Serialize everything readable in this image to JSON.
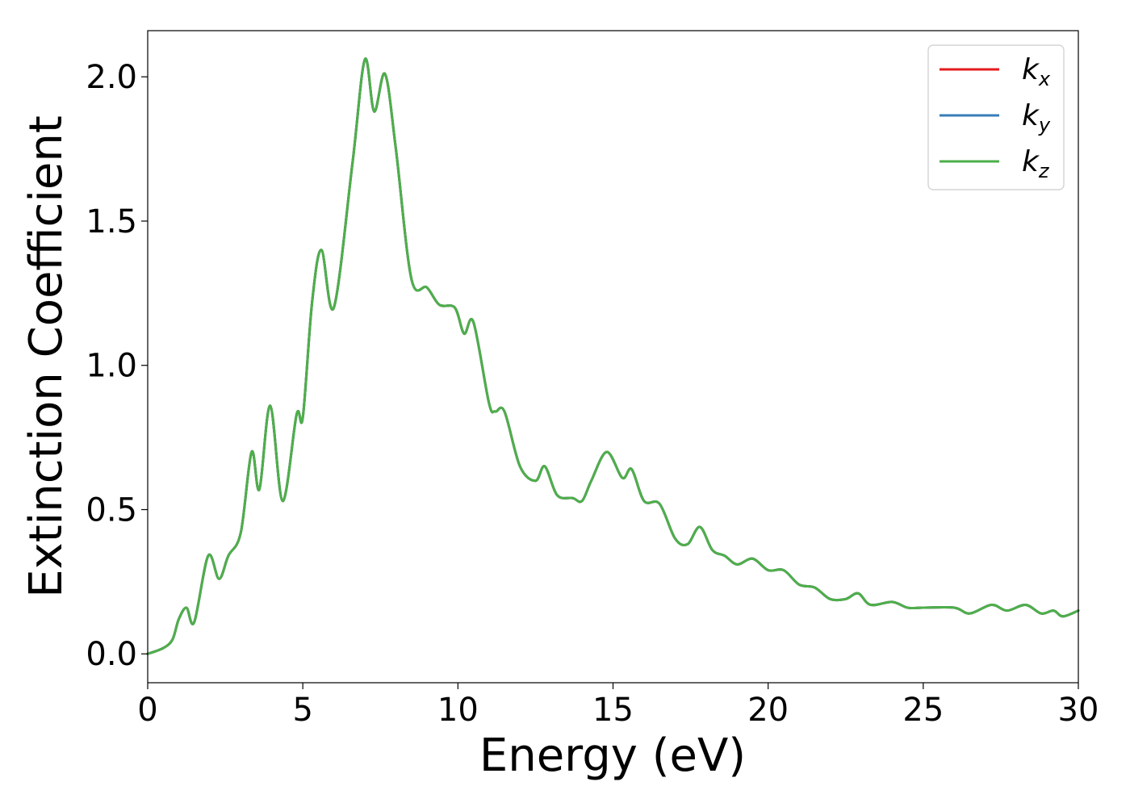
{
  "chart_data": {
    "type": "line",
    "xlabel": "Energy (eV)",
    "ylabel": "Extinction Coefficient",
    "xlim": [
      0,
      30
    ],
    "ylim": [
      -0.1,
      2.16
    ],
    "xticks": [
      0,
      5,
      10,
      15,
      20,
      25,
      30
    ],
    "xtick_labels": [
      "0",
      "5",
      "10",
      "15",
      "20",
      "25",
      "30"
    ],
    "yticks": [
      0.0,
      0.5,
      1.0,
      1.5,
      2.0
    ],
    "ytick_labels": [
      "0.0",
      "0.5",
      "1.0",
      "1.5",
      "2.0"
    ],
    "grid": false,
    "legend_position": "top-right",
    "legend": [
      {
        "base": "k",
        "sub": "x",
        "color": "#e41a1c"
      },
      {
        "base": "k",
        "sub": "y",
        "color": "#377eb8"
      },
      {
        "base": "k",
        "sub": "z",
        "color": "#4daf4a"
      }
    ],
    "x": [
      0,
      0.5,
      0.8,
      1.0,
      1.25,
      1.5,
      1.95,
      2.3,
      2.6,
      3.0,
      3.35,
      3.6,
      3.95,
      4.35,
      4.8,
      5.0,
      5.3,
      5.6,
      6.0,
      6.6,
      7.0,
      7.3,
      7.65,
      8.0,
      8.5,
      9.0,
      9.4,
      9.9,
      10.2,
      10.5,
      11.0,
      11.2,
      11.5,
      12.0,
      12.5,
      12.8,
      13.2,
      13.7,
      14.0,
      14.3,
      14.8,
      15.3,
      15.6,
      16.0,
      16.5,
      17.0,
      17.4,
      17.8,
      18.2,
      18.6,
      19.0,
      19.5,
      20.0,
      20.5,
      21.0,
      21.5,
      22.0,
      22.5,
      22.9,
      23.3,
      24.0,
      24.5,
      25.0,
      26.0,
      26.5,
      27.2,
      27.7,
      28.3,
      28.8,
      29.2,
      29.5,
      30.0
    ],
    "series": [
      {
        "name": "k_x",
        "color": "#e41a1c",
        "values": [
          0.0,
          0.02,
          0.05,
          0.12,
          0.16,
          0.11,
          0.34,
          0.26,
          0.34,
          0.42,
          0.7,
          0.57,
          0.86,
          0.53,
          0.83,
          0.82,
          1.22,
          1.4,
          1.2,
          1.7,
          2.06,
          1.88,
          2.01,
          1.75,
          1.3,
          1.27,
          1.21,
          1.2,
          1.11,
          1.15,
          0.87,
          0.84,
          0.84,
          0.65,
          0.6,
          0.65,
          0.55,
          0.54,
          0.53,
          0.6,
          0.7,
          0.61,
          0.64,
          0.53,
          0.52,
          0.4,
          0.38,
          0.44,
          0.36,
          0.34,
          0.31,
          0.33,
          0.29,
          0.29,
          0.24,
          0.23,
          0.19,
          0.19,
          0.21,
          0.17,
          0.18,
          0.16,
          0.16,
          0.16,
          0.14,
          0.17,
          0.15,
          0.17,
          0.14,
          0.15,
          0.13,
          0.15
        ]
      },
      {
        "name": "k_y",
        "color": "#377eb8",
        "values": [
          0.0,
          0.02,
          0.05,
          0.12,
          0.16,
          0.11,
          0.34,
          0.26,
          0.34,
          0.42,
          0.7,
          0.57,
          0.86,
          0.53,
          0.83,
          0.82,
          1.22,
          1.4,
          1.2,
          1.7,
          2.06,
          1.88,
          2.01,
          1.75,
          1.3,
          1.27,
          1.21,
          1.2,
          1.11,
          1.15,
          0.87,
          0.84,
          0.84,
          0.65,
          0.6,
          0.65,
          0.55,
          0.54,
          0.53,
          0.6,
          0.7,
          0.61,
          0.64,
          0.53,
          0.52,
          0.4,
          0.38,
          0.44,
          0.36,
          0.34,
          0.31,
          0.33,
          0.29,
          0.29,
          0.24,
          0.23,
          0.19,
          0.19,
          0.21,
          0.17,
          0.18,
          0.16,
          0.16,
          0.16,
          0.14,
          0.17,
          0.15,
          0.17,
          0.14,
          0.15,
          0.13,
          0.15
        ]
      },
      {
        "name": "k_z",
        "color": "#4daf4a",
        "values": [
          0.0,
          0.02,
          0.05,
          0.12,
          0.16,
          0.11,
          0.34,
          0.26,
          0.34,
          0.42,
          0.7,
          0.57,
          0.86,
          0.53,
          0.83,
          0.82,
          1.22,
          1.4,
          1.2,
          1.7,
          2.06,
          1.88,
          2.01,
          1.75,
          1.3,
          1.27,
          1.21,
          1.2,
          1.11,
          1.15,
          0.87,
          0.84,
          0.84,
          0.65,
          0.6,
          0.65,
          0.55,
          0.54,
          0.53,
          0.6,
          0.7,
          0.61,
          0.64,
          0.53,
          0.52,
          0.4,
          0.38,
          0.44,
          0.36,
          0.34,
          0.31,
          0.33,
          0.29,
          0.29,
          0.24,
          0.23,
          0.19,
          0.19,
          0.21,
          0.17,
          0.18,
          0.16,
          0.16,
          0.16,
          0.14,
          0.17,
          0.15,
          0.17,
          0.14,
          0.15,
          0.13,
          0.15
        ]
      }
    ]
  }
}
